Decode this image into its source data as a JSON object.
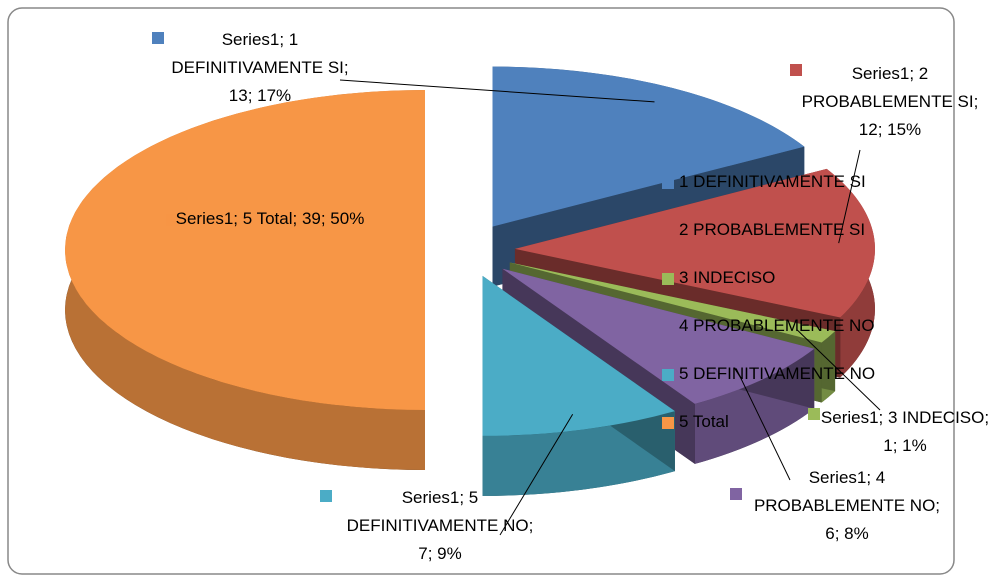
{
  "chart_data": {
    "type": "pie3d",
    "series_name": "Series1",
    "categories": [
      "1 DEFINITIVAMENTE SI",
      "2 PROBABLEMENTE SI",
      "3 INDECISO",
      "4 PROBABLEMENTE NO",
      "5 DEFINITIVAMENTE NO",
      "5 Total"
    ],
    "values": [
      13,
      12,
      1,
      6,
      7,
      39
    ],
    "value_labels": [
      "Series1; 1 DEFINITIVAMENTE SI; 13; 17%",
      "Series1; 2 PROBABLEMENTE SI; 12; 15%",
      "Series1; 3 INDECISO; 1; 1%",
      "Series1; 4 PROBABLEMENTE NO; 6; 8%",
      "Series1; 5 DEFINITIVAMENTE NO; 7; 9%",
      "Series1; 5 Total; 39; 50%"
    ],
    "colors": [
      "#4f81bd",
      "#c0504d",
      "#9bbb59",
      "#8064a2",
      "#4bacc6",
      "#f79646"
    ],
    "legend": "right"
  }
}
